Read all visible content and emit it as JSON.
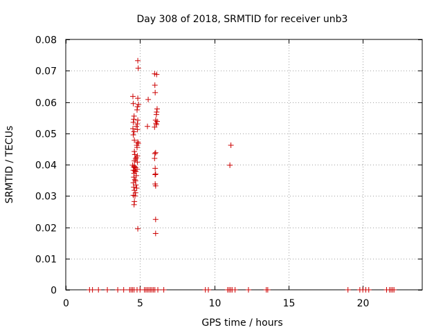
{
  "chart_data": {
    "type": "scatter",
    "title": "Day 308 of 2018, SRMTID for receiver unb3",
    "xlabel": "GPS time / hours",
    "ylabel": "SRMTID / TECUs",
    "xlim": [
      0,
      24
    ],
    "ylim": [
      0,
      0.08
    ],
    "grid": true,
    "marker": "+",
    "color": "#cc0000",
    "x_ticks": [
      0,
      5,
      10,
      15,
      20
    ],
    "x_tick_labels": [
      "0",
      "5",
      "10",
      "15",
      "20"
    ],
    "y_ticks": [
      0,
      0.01,
      0.02,
      0.03,
      0.04,
      0.05,
      0.06,
      0.07,
      0.08
    ],
    "y_tick_labels": [
      "0",
      "0.01",
      "0.02",
      "0.03",
      "0.04",
      "0.05",
      "0.06",
      "0.07",
      "0.08"
    ],
    "series": [
      {
        "name": "SRMTID",
        "points": [
          [
            4.85,
            0.0732
          ],
          [
            4.88,
            0.0708
          ],
          [
            5.98,
            0.069
          ],
          [
            6.12,
            0.0688
          ],
          [
            6.0,
            0.0654
          ],
          [
            6.02,
            0.063
          ],
          [
            4.52,
            0.0618
          ],
          [
            4.85,
            0.0612
          ],
          [
            5.55,
            0.0608
          ],
          [
            4.55,
            0.0595
          ],
          [
            4.9,
            0.0592
          ],
          [
            4.83,
            0.0585
          ],
          [
            6.15,
            0.0578
          ],
          [
            4.8,
            0.0575
          ],
          [
            6.12,
            0.0568
          ],
          [
            6.1,
            0.056
          ],
          [
            4.6,
            0.0555
          ],
          [
            4.58,
            0.0545
          ],
          [
            6.05,
            0.0542
          ],
          [
            4.85,
            0.0542
          ],
          [
            6.15,
            0.0538
          ],
          [
            4.55,
            0.0535
          ],
          [
            4.82,
            0.053
          ],
          [
            6.08,
            0.0532
          ],
          [
            6.1,
            0.0528
          ],
          [
            5.5,
            0.0522
          ],
          [
            4.75,
            0.0522
          ],
          [
            5.98,
            0.052
          ],
          [
            4.52,
            0.0515
          ],
          [
            4.83,
            0.0512
          ],
          [
            4.6,
            0.0505
          ],
          [
            4.55,
            0.0495
          ],
          [
            4.62,
            0.0478
          ],
          [
            4.85,
            0.0472
          ],
          [
            4.88,
            0.0468
          ],
          [
            4.78,
            0.0462
          ],
          [
            4.8,
            0.0455
          ],
          [
            4.62,
            0.0442
          ],
          [
            6.05,
            0.0438
          ],
          [
            6.0,
            0.0435
          ],
          [
            4.65,
            0.0432
          ],
          [
            4.82,
            0.0428
          ],
          [
            4.75,
            0.0422
          ],
          [
            5.98,
            0.042
          ],
          [
            4.7,
            0.0418
          ],
          [
            4.62,
            0.0412
          ],
          [
            4.82,
            0.0408
          ],
          [
            4.5,
            0.0398
          ],
          [
            4.58,
            0.0392
          ],
          [
            4.62,
            0.0395
          ],
          [
            4.7,
            0.039
          ],
          [
            4.8,
            0.0385
          ],
          [
            6.02,
            0.0388
          ],
          [
            4.55,
            0.0382
          ],
          [
            4.65,
            0.038
          ],
          [
            4.72,
            0.0378
          ],
          [
            4.6,
            0.0372
          ],
          [
            6.05,
            0.037
          ],
          [
            4.75,
            0.0365
          ],
          [
            4.58,
            0.036
          ],
          [
            6.02,
            0.0368
          ],
          [
            4.65,
            0.0352
          ],
          [
            4.7,
            0.0348
          ],
          [
            4.55,
            0.0342
          ],
          [
            6.02,
            0.0338
          ],
          [
            4.72,
            0.0335
          ],
          [
            4.58,
            0.0328
          ],
          [
            6.05,
            0.0332
          ],
          [
            4.78,
            0.0325
          ],
          [
            4.62,
            0.0318
          ],
          [
            4.7,
            0.031
          ],
          [
            4.55,
            0.0302
          ],
          [
            4.66,
            0.03
          ],
          [
            4.62,
            0.0282
          ],
          [
            4.6,
            0.0272
          ],
          [
            6.05,
            0.0225
          ],
          [
            4.85,
            0.0195
          ],
          [
            6.05,
            0.018
          ],
          [
            11.12,
            0.0462
          ],
          [
            11.05,
            0.0398
          ],
          [
            1.6,
            0.0
          ],
          [
            1.8,
            0.0
          ],
          [
            2.2,
            0.0
          ],
          [
            2.8,
            0.0
          ],
          [
            3.5,
            0.0
          ],
          [
            3.9,
            0.0
          ],
          [
            4.3,
            0.0
          ],
          [
            4.4,
            0.0
          ],
          [
            4.5,
            0.0
          ],
          [
            4.6,
            0.0
          ],
          [
            4.8,
            0.0
          ],
          [
            5.0,
            0.0
          ],
          [
            5.3,
            0.0
          ],
          [
            5.4,
            0.0
          ],
          [
            5.5,
            0.0
          ],
          [
            5.6,
            0.0
          ],
          [
            5.7,
            0.0
          ],
          [
            5.8,
            0.0
          ],
          [
            5.9,
            0.0
          ],
          [
            6.0,
            0.0
          ],
          [
            6.2,
            0.0
          ],
          [
            6.6,
            0.0
          ],
          [
            9.4,
            0.0
          ],
          [
            9.6,
            0.0
          ],
          [
            10.9,
            0.0
          ],
          [
            11.0,
            0.0
          ],
          [
            11.1,
            0.0
          ],
          [
            11.2,
            0.0
          ],
          [
            11.4,
            0.0
          ],
          [
            12.3,
            0.0
          ],
          [
            13.5,
            0.0
          ],
          [
            13.6,
            0.0
          ],
          [
            19.0,
            0.0
          ],
          [
            19.8,
            0.0
          ],
          [
            20.0,
            0.0
          ],
          [
            20.2,
            0.0
          ],
          [
            20.4,
            0.0
          ],
          [
            21.6,
            0.0
          ],
          [
            21.8,
            0.0
          ],
          [
            21.9,
            0.0
          ],
          [
            22.0,
            0.0
          ],
          [
            22.1,
            0.0
          ]
        ]
      }
    ]
  }
}
